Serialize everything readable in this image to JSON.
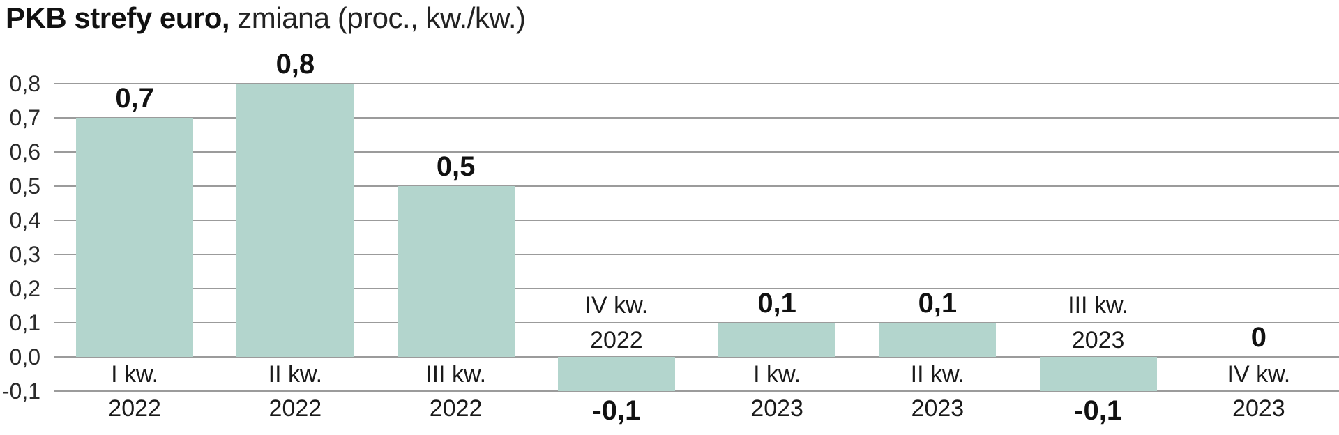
{
  "chart_data": {
    "type": "bar",
    "title": "PKB strefy euro, zmiana (proc., kw./kw.)",
    "title_bold": "PKB strefy euro,",
    "title_rest": " zmiana (proc., kw./kw.)",
    "categories": [
      [
        "I kw.",
        "2022"
      ],
      [
        "II kw.",
        "2022"
      ],
      [
        "III kw.",
        "2022"
      ],
      [
        "IV kw.",
        "2022"
      ],
      [
        "I kw.",
        "2023"
      ],
      [
        "II kw.",
        "2023"
      ],
      [
        "III kw.",
        "2023"
      ],
      [
        "IV kw.",
        "2023"
      ]
    ],
    "values": [
      0.7,
      0.8,
      0.5,
      -0.1,
      0.1,
      0.1,
      -0.1,
      0
    ],
    "value_labels": [
      "0,7",
      "0,8",
      "0,5",
      "-0,1",
      "0,1",
      "0,1",
      "-0,1",
      "0"
    ],
    "y_ticks": [
      "0,8",
      "0,7",
      "0,6",
      "0,5",
      "0,4",
      "0,3",
      "0,2",
      "0,1",
      "0,0",
      "-0,1"
    ],
    "y_tick_values": [
      0.8,
      0.7,
      0.6,
      0.5,
      0.4,
      0.3,
      0.2,
      0.1,
      0.0,
      -0.1
    ],
    "ylim": [
      -0.1,
      0.8
    ],
    "xlabel": "",
    "ylabel": "",
    "grid": true,
    "legend": "none",
    "bar_color": "#b3d5cd",
    "grid_color": "#9b9b9b",
    "text_color": "#1a1a1a",
    "background_color": "#ffffff"
  }
}
